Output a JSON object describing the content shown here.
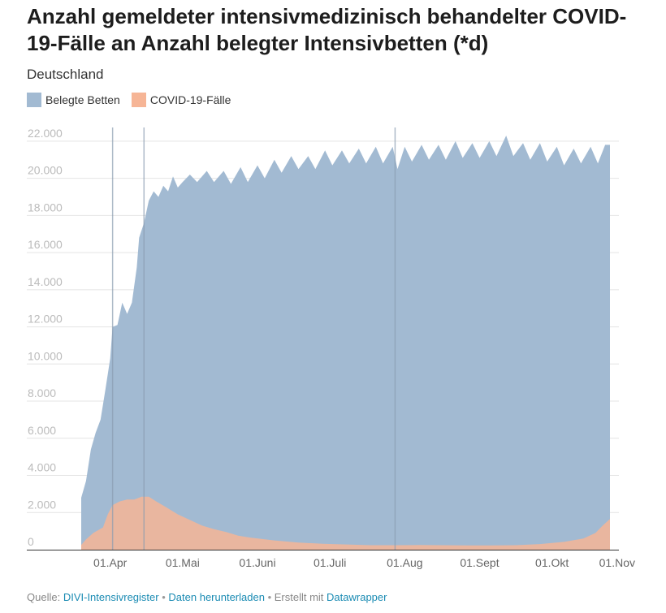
{
  "title": "Anzahl gemeldeter intensivmedizinisch behandelter COVID-19-Fälle an Anzahl belegter Intensivbetten (*d)",
  "subtitle": "Deutschland",
  "legend": [
    {
      "label": "Belegte Betten",
      "color": "#a2bad2"
    },
    {
      "label": "COVID-19-Fälle",
      "color": "#f6b596"
    }
  ],
  "footer": {
    "source_prefix": "Quelle:",
    "source_link": "DIVI-Intensivregister",
    "download_link": "Daten herunterladen",
    "created_with": "Erstellt mit",
    "tool_link": "Datawrapper"
  },
  "chart_data": {
    "type": "area",
    "x_unit": "days since 2020-03-20",
    "ylim": [
      0,
      23000
    ],
    "y_ticks": [
      {
        "value": 0,
        "label": "0"
      },
      {
        "value": 2000,
        "label": "2.000"
      },
      {
        "value": 4000,
        "label": "4.000"
      },
      {
        "value": 6000,
        "label": "6.000"
      },
      {
        "value": 8000,
        "label": "8.000"
      },
      {
        "value": 10000,
        "label": "10.000"
      },
      {
        "value": 12000,
        "label": "12.000"
      },
      {
        "value": 14000,
        "label": "14.000"
      },
      {
        "value": 16000,
        "label": "16.000"
      },
      {
        "value": 18000,
        "label": "18.000"
      },
      {
        "value": 20000,
        "label": "20.000"
      },
      {
        "value": 22000,
        "label": "22.000"
      }
    ],
    "x_ticks": [
      {
        "day": 12,
        "label": "01.Apr"
      },
      {
        "day": 42,
        "label": "01.Mai"
      },
      {
        "day": 73,
        "label": "01.Juni"
      },
      {
        "day": 103,
        "label": "01.Juli"
      },
      {
        "day": 134,
        "label": "01.Aug"
      },
      {
        "day": 165,
        "label": "01.Sept"
      },
      {
        "day": 195,
        "label": "01.Okt"
      },
      {
        "day": 226,
        "label": "01.Nov"
      }
    ],
    "vertical_lines": [
      13,
      26,
      130
    ],
    "series": [
      {
        "name": "Belegte Betten",
        "color": "#a2bad2",
        "points": [
          [
            0,
            2800
          ],
          [
            2,
            3700
          ],
          [
            4,
            5400
          ],
          [
            6,
            6300
          ],
          [
            8,
            7000
          ],
          [
            10,
            8600
          ],
          [
            12,
            10300
          ],
          [
            13,
            12000
          ],
          [
            15,
            12100
          ],
          [
            17,
            13300
          ],
          [
            19,
            12700
          ],
          [
            21,
            13300
          ],
          [
            23,
            15200
          ],
          [
            24,
            16800
          ],
          [
            26,
            17600
          ],
          [
            28,
            18800
          ],
          [
            30,
            19300
          ],
          [
            32,
            19000
          ],
          [
            34,
            19600
          ],
          [
            36,
            19300
          ],
          [
            38,
            20100
          ],
          [
            40,
            19500
          ],
          [
            42,
            19800
          ],
          [
            45,
            20200
          ],
          [
            48,
            19800
          ],
          [
            52,
            20400
          ],
          [
            55,
            19800
          ],
          [
            59,
            20400
          ],
          [
            62,
            19700
          ],
          [
            66,
            20600
          ],
          [
            69,
            19800
          ],
          [
            73,
            20700
          ],
          [
            76,
            20000
          ],
          [
            80,
            21000
          ],
          [
            83,
            20300
          ],
          [
            87,
            21200
          ],
          [
            90,
            20500
          ],
          [
            94,
            21200
          ],
          [
            97,
            20500
          ],
          [
            101,
            21500
          ],
          [
            104,
            20700
          ],
          [
            108,
            21500
          ],
          [
            111,
            20800
          ],
          [
            115,
            21600
          ],
          [
            118,
            20800
          ],
          [
            122,
            21700
          ],
          [
            125,
            20800
          ],
          [
            129,
            21700
          ],
          [
            131,
            20500
          ],
          [
            134,
            21700
          ],
          [
            137,
            20900
          ],
          [
            141,
            21800
          ],
          [
            144,
            21000
          ],
          [
            148,
            21800
          ],
          [
            151,
            21000
          ],
          [
            155,
            22000
          ],
          [
            158,
            21100
          ],
          [
            162,
            21900
          ],
          [
            165,
            21100
          ],
          [
            169,
            22000
          ],
          [
            172,
            21200
          ],
          [
            176,
            22300
          ],
          [
            179,
            21200
          ],
          [
            183,
            21900
          ],
          [
            186,
            21000
          ],
          [
            190,
            21900
          ],
          [
            193,
            20900
          ],
          [
            197,
            21700
          ],
          [
            200,
            20700
          ],
          [
            204,
            21600
          ],
          [
            207,
            20800
          ],
          [
            211,
            21700
          ],
          [
            214,
            20800
          ],
          [
            217,
            21800
          ],
          [
            219,
            21800
          ]
        ]
      },
      {
        "name": "COVID-19-Fälle",
        "color": "#f6b596",
        "points": [
          [
            0,
            250
          ],
          [
            2,
            550
          ],
          [
            5,
            900
          ],
          [
            9,
            1200
          ],
          [
            11,
            1900
          ],
          [
            13,
            2400
          ],
          [
            16,
            2600
          ],
          [
            19,
            2700
          ],
          [
            22,
            2700
          ],
          [
            25,
            2850
          ],
          [
            28,
            2850
          ],
          [
            31,
            2600
          ],
          [
            35,
            2300
          ],
          [
            40,
            1900
          ],
          [
            45,
            1600
          ],
          [
            50,
            1300
          ],
          [
            55,
            1100
          ],
          [
            60,
            950
          ],
          [
            65,
            750
          ],
          [
            70,
            650
          ],
          [
            80,
            500
          ],
          [
            90,
            380
          ],
          [
            100,
            320
          ],
          [
            110,
            280
          ],
          [
            120,
            240
          ],
          [
            130,
            240
          ],
          [
            140,
            250
          ],
          [
            150,
            240
          ],
          [
            160,
            230
          ],
          [
            170,
            230
          ],
          [
            180,
            240
          ],
          [
            190,
            300
          ],
          [
            200,
            420
          ],
          [
            208,
            600
          ],
          [
            213,
            900
          ],
          [
            216,
            1300
          ],
          [
            219,
            1650
          ]
        ]
      }
    ]
  }
}
